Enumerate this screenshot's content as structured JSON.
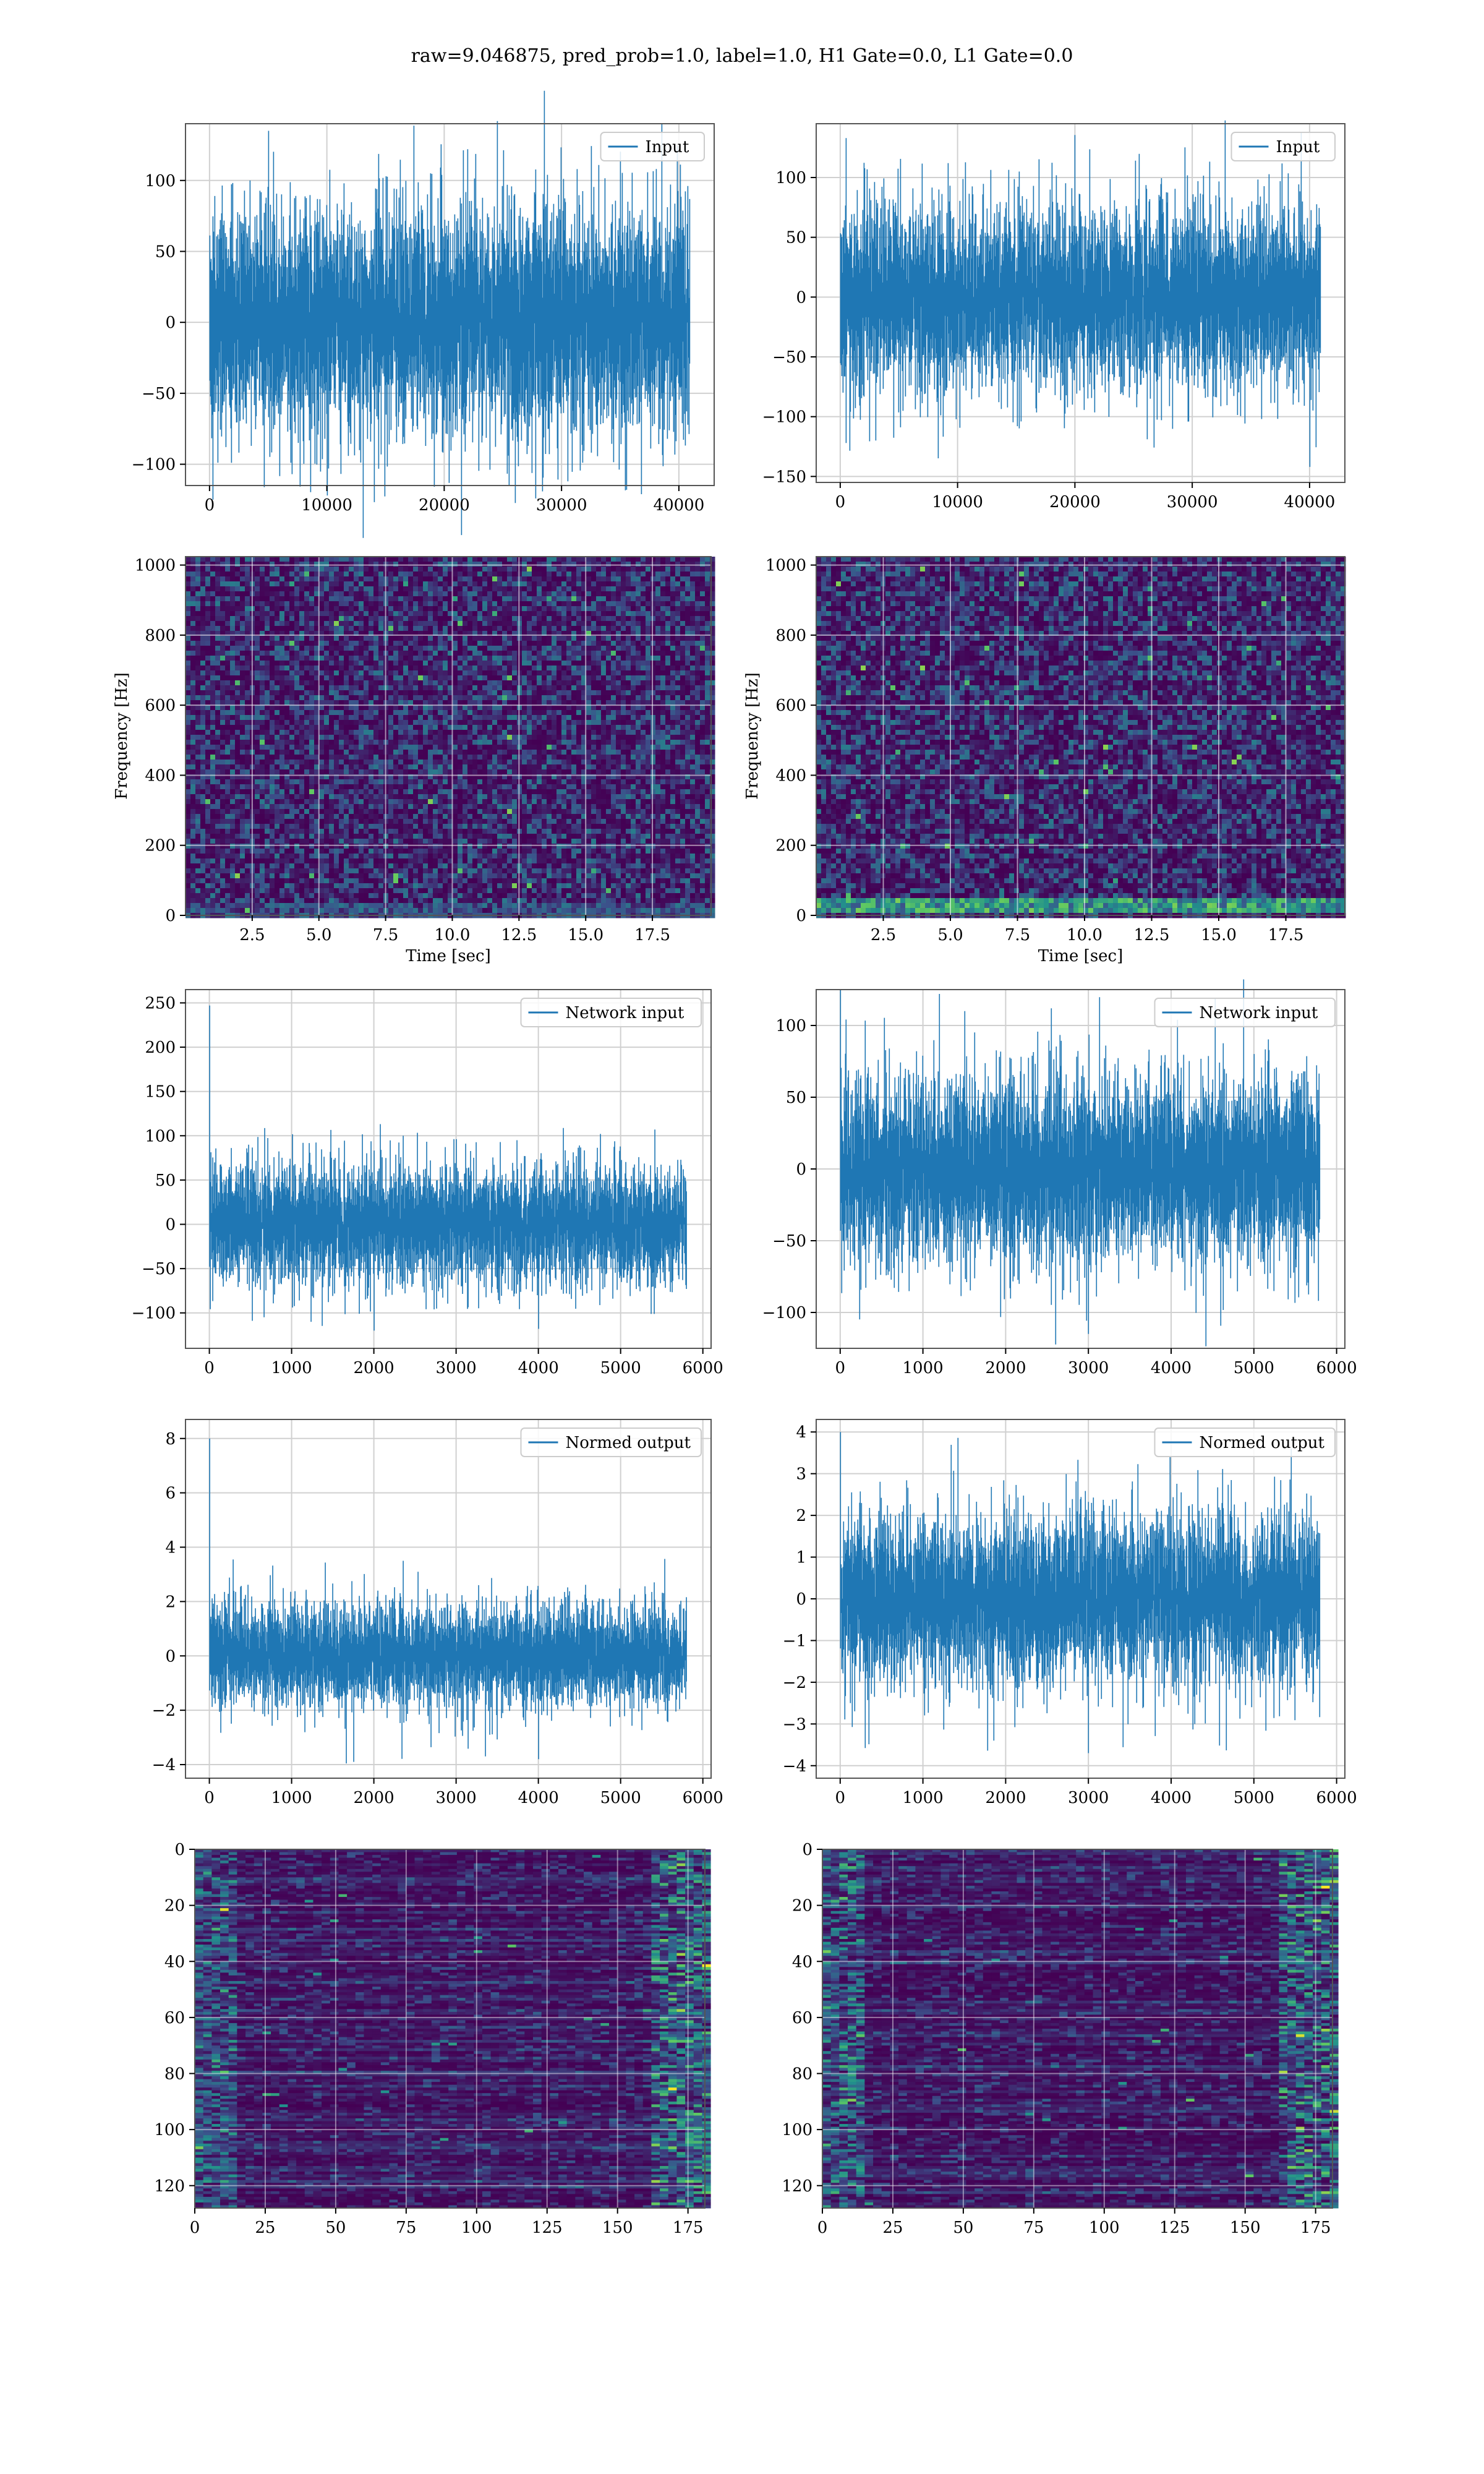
{
  "figure": {
    "suptitle": "raw=9.046875, pred_prob=1.0, label=1.0, H1 Gate=0.0, L1 Gate=0.0",
    "colors": {
      "series": "#1f77b4",
      "frame": "#555555",
      "grid": "#d0d0d0",
      "viridis_low": "#440154",
      "viridis_high": "#fde725"
    }
  },
  "chart_data": [
    {
      "id": "h1-input",
      "type": "line",
      "title": "",
      "legend": "Input",
      "legend_position": "top-right",
      "xlabel": "",
      "ylabel": "",
      "xlim": [
        -2048,
        43008
      ],
      "ylim": [
        -115,
        140
      ],
      "xticks": [
        0,
        10000,
        20000,
        30000,
        40000
      ],
      "yticks": [
        -100,
        -50,
        0,
        50,
        100
      ],
      "grid": true,
      "series": [
        {
          "n_samples": 40960,
          "amp": 36,
          "spikes": [
            [
              5000,
              135
            ],
            [
              10000,
              -122
            ],
            [
              35500,
              -118
            ],
            [
              22000,
              122
            ]
          ]
        }
      ]
    },
    {
      "id": "l1-input",
      "type": "line",
      "title": "",
      "legend": "Input",
      "legend_position": "top-right",
      "xlabel": "",
      "ylabel": "",
      "xlim": [
        -2048,
        43008
      ],
      "ylim": [
        -155,
        145
      ],
      "xticks": [
        0,
        10000,
        20000,
        30000,
        40000
      ],
      "yticks": [
        -150,
        -100,
        -50,
        0,
        50,
        100
      ],
      "grid": true,
      "series": [
        {
          "n_samples": 40960,
          "amp": 34,
          "spikes": [
            [
              500,
              133
            ],
            [
              40000,
              -142
            ],
            [
              500,
              -122
            ],
            [
              3000,
              -120
            ]
          ]
        }
      ]
    },
    {
      "id": "h1-spectrogram",
      "type": "heatmap",
      "title": "",
      "xlabel": "Time [sec]",
      "ylabel": "Frequency [Hz]",
      "xlim": [
        0,
        19.7
      ],
      "ylim": [
        0,
        1024
      ],
      "xticks": [
        2.5,
        5.0,
        7.5,
        10.0,
        12.5,
        15.0,
        17.5
      ],
      "yticks": [
        0,
        200,
        400,
        600,
        800,
        1000
      ],
      "colormap": "viridis",
      "grid": true,
      "description_of_values": "power spectrogram, mostly low noise"
    },
    {
      "id": "l1-spectrogram",
      "type": "heatmap",
      "title": "",
      "xlabel": "Time [sec]",
      "ylabel": "Frequency [Hz]",
      "xlim": [
        0,
        19.7
      ],
      "ylim": [
        0,
        1024
      ],
      "xticks": [
        2.5,
        5.0,
        7.5,
        10.0,
        12.5,
        15.0,
        17.5
      ],
      "yticks": [
        0,
        200,
        400,
        600,
        800,
        1000
      ],
      "colormap": "viridis",
      "grid": true,
      "description_of_values": "power spectrogram with bright band near 30-60 Hz"
    },
    {
      "id": "h1-network-input",
      "type": "line",
      "title": "",
      "legend": "Network input",
      "legend_position": "top-right",
      "xlabel": "",
      "ylabel": "",
      "xlim": [
        -290,
        6100
      ],
      "ylim": [
        -140,
        265
      ],
      "xticks": [
        0,
        1000,
        2000,
        3000,
        4000,
        5000,
        6000
      ],
      "yticks": [
        -100,
        -50,
        0,
        50,
        100,
        150,
        200,
        250
      ],
      "grid": true,
      "series": [
        {
          "n_samples": 5800,
          "amp": 30,
          "spikes": [
            [
              0,
              247
            ],
            [
              2000,
              -120
            ],
            [
              4000,
              -118
            ],
            [
              2350,
              100
            ]
          ]
        }
      ]
    },
    {
      "id": "l1-network-input",
      "type": "line",
      "title": "",
      "legend": "Network input",
      "legend_position": "top-right",
      "xlabel": "",
      "ylabel": "",
      "xlim": [
        -290,
        6100
      ],
      "ylim": [
        -125,
        125
      ],
      "xticks": [
        0,
        1000,
        2000,
        3000,
        4000,
        5000,
        6000
      ],
      "yticks": [
        -100,
        -50,
        0,
        50,
        100
      ],
      "grid": true,
      "series": [
        {
          "n_samples": 5800,
          "amp": 29,
          "spikes": [
            [
              0,
              125
            ],
            [
              3000,
              -115
            ],
            [
              1500,
              110
            ],
            [
              2550,
              112
            ]
          ]
        }
      ]
    },
    {
      "id": "h1-normed-output",
      "type": "line",
      "title": "",
      "legend": "Normed output",
      "legend_position": "top-right",
      "xlabel": "",
      "ylabel": "",
      "xlim": [
        -290,
        6100
      ],
      "ylim": [
        -4.5,
        8.7
      ],
      "xticks": [
        0,
        1000,
        2000,
        3000,
        4000,
        5000,
        6000
      ],
      "yticks": [
        -4,
        -2,
        0,
        2,
        4,
        6,
        8
      ],
      "grid": true,
      "series": [
        {
          "n_samples": 5800,
          "amp": 0.85,
          "spikes": [
            [
              0,
              8.0
            ],
            [
              1750,
              -3.9
            ],
            [
              4000,
              -3.8
            ],
            [
              2350,
              3.5
            ]
          ]
        }
      ]
    },
    {
      "id": "l1-normed-output",
      "type": "line",
      "title": "",
      "legend": "Normed output",
      "legend_position": "top-right",
      "xlabel": "",
      "ylabel": "",
      "xlim": [
        -290,
        6100
      ],
      "ylim": [
        -4.3,
        4.3
      ],
      "xticks": [
        0,
        1000,
        2000,
        3000,
        4000,
        5000,
        6000
      ],
      "yticks": [
        -4,
        -3,
        -2,
        -1,
        0,
        1,
        2,
        3,
        4
      ],
      "grid": true,
      "series": [
        {
          "n_samples": 5800,
          "amp": 0.9,
          "spikes": [
            [
              0,
              4.0
            ],
            [
              3000,
              -3.7
            ],
            [
              5450,
              3.6
            ],
            [
              1850,
              -3.4
            ]
          ]
        }
      ]
    },
    {
      "id": "h1-feature-map",
      "type": "heatmap",
      "title": "",
      "xlabel": "",
      "ylabel": "",
      "xlim": [
        0,
        181
      ],
      "ylim": [
        128,
        0
      ],
      "xticks": [
        0,
        25,
        50,
        75,
        100,
        125,
        150,
        175
      ],
      "yticks": [
        0,
        20,
        40,
        60,
        80,
        100,
        120
      ],
      "colormap": "viridis",
      "grid": true,
      "n_rows": 128,
      "n_cols": 181
    },
    {
      "id": "l1-feature-map",
      "type": "heatmap",
      "title": "",
      "xlabel": "",
      "ylabel": "",
      "xlim": [
        0,
        181
      ],
      "ylim": [
        128,
        0
      ],
      "xticks": [
        0,
        25,
        50,
        75,
        100,
        125,
        150,
        175
      ],
      "yticks": [
        0,
        20,
        40,
        60,
        80,
        100,
        120
      ],
      "colormap": "viridis",
      "grid": true,
      "n_rows": 128,
      "n_cols": 181
    }
  ]
}
